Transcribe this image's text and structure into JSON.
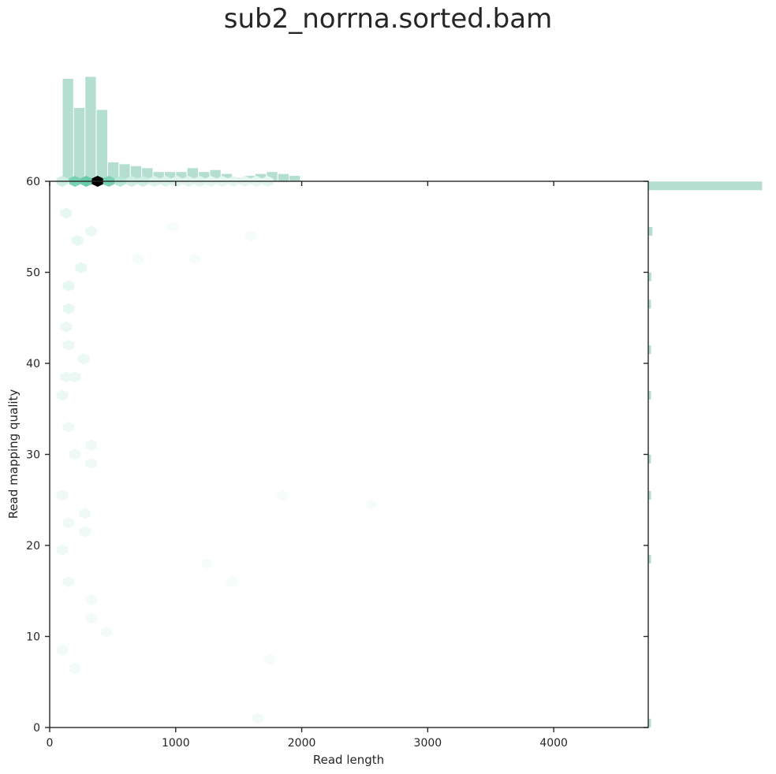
{
  "title": "sub2_norrna.sorted.bam",
  "colors": {
    "accent": "#3fbf95",
    "marginal": "#b4dfd0",
    "axis": "#262626",
    "peak": "#000000"
  },
  "chart_data": {
    "type": "hexbin-joint",
    "title": "sub2_norrna.sorted.bam",
    "xlabel": "Read length",
    "ylabel": "Read mapping quality",
    "xlim": [
      0,
      4750
    ],
    "ylim": [
      0,
      60
    ],
    "xticks": [
      0,
      1000,
      2000,
      3000,
      4000
    ],
    "yticks": [
      0,
      10,
      20,
      30,
      40,
      50,
      60
    ],
    "grid": false,
    "marginal_x": {
      "bin_start": 100,
      "bin_width": 90,
      "counts": [
        53,
        38,
        54,
        37,
        10,
        9,
        8,
        7,
        5,
        5,
        5,
        7,
        5,
        6,
        4,
        2,
        3,
        4,
        5,
        4,
        3
      ]
    },
    "marginal_y": {
      "bins": [
        {
          "y": 59.5,
          "count": 100
        },
        {
          "y": 54.5,
          "count": 4
        },
        {
          "y": 49.5,
          "count": 3
        },
        {
          "y": 46.5,
          "count": 2
        },
        {
          "y": 41.5,
          "count": 2
        },
        {
          "y": 36.5,
          "count": 2
        },
        {
          "y": 29.5,
          "count": 1
        },
        {
          "y": 25.5,
          "count": 1
        },
        {
          "y": 18.5,
          "count": 1
        },
        {
          "y": 0.5,
          "count": 2
        }
      ]
    },
    "hexbins": [
      {
        "x": 100,
        "y": 60,
        "d": 0.15
      },
      {
        "x": 200,
        "y": 60,
        "d": 0.6
      },
      {
        "x": 290,
        "y": 60,
        "d": 0.7
      },
      {
        "x": 380,
        "y": 60,
        "d": 1.0
      },
      {
        "x": 470,
        "y": 60,
        "d": 0.6
      },
      {
        "x": 560,
        "y": 60,
        "d": 0.25
      },
      {
        "x": 650,
        "y": 60,
        "d": 0.15
      },
      {
        "x": 740,
        "y": 60,
        "d": 0.15
      },
      {
        "x": 830,
        "y": 60,
        "d": 0.1
      },
      {
        "x": 920,
        "y": 60,
        "d": 0.1
      },
      {
        "x": 1010,
        "y": 60,
        "d": 0.08
      },
      {
        "x": 1100,
        "y": 60,
        "d": 0.08
      },
      {
        "x": 1190,
        "y": 60,
        "d": 0.08
      },
      {
        "x": 1280,
        "y": 60,
        "d": 0.06
      },
      {
        "x": 1370,
        "y": 60,
        "d": 0.06
      },
      {
        "x": 1460,
        "y": 60,
        "d": 0.06
      },
      {
        "x": 1550,
        "y": 60,
        "d": 0.06
      },
      {
        "x": 1640,
        "y": 60,
        "d": 0.06
      },
      {
        "x": 1730,
        "y": 60,
        "d": 0.06
      },
      {
        "x": 130,
        "y": 56.5,
        "d": 0.05
      },
      {
        "x": 220,
        "y": 53.5,
        "d": 0.05
      },
      {
        "x": 330,
        "y": 54.5,
        "d": 0.04
      },
      {
        "x": 250,
        "y": 50.5,
        "d": 0.05
      },
      {
        "x": 150,
        "y": 48.5,
        "d": 0.05
      },
      {
        "x": 150,
        "y": 46.0,
        "d": 0.05
      },
      {
        "x": 130,
        "y": 44.0,
        "d": 0.04
      },
      {
        "x": 150,
        "y": 42.0,
        "d": 0.04
      },
      {
        "x": 270,
        "y": 40.5,
        "d": 0.04
      },
      {
        "x": 130,
        "y": 38.5,
        "d": 0.04
      },
      {
        "x": 200,
        "y": 38.5,
        "d": 0.04
      },
      {
        "x": 100,
        "y": 36.5,
        "d": 0.04
      },
      {
        "x": 150,
        "y": 33.0,
        "d": 0.03
      },
      {
        "x": 330,
        "y": 31.0,
        "d": 0.03
      },
      {
        "x": 200,
        "y": 30.0,
        "d": 0.03
      },
      {
        "x": 330,
        "y": 29.0,
        "d": 0.03
      },
      {
        "x": 100,
        "y": 25.5,
        "d": 0.03
      },
      {
        "x": 280,
        "y": 23.5,
        "d": 0.03
      },
      {
        "x": 150,
        "y": 22.5,
        "d": 0.03
      },
      {
        "x": 280,
        "y": 21.5,
        "d": 0.03
      },
      {
        "x": 100,
        "y": 19.5,
        "d": 0.03
      },
      {
        "x": 150,
        "y": 16.0,
        "d": 0.03
      },
      {
        "x": 330,
        "y": 14.0,
        "d": 0.02
      },
      {
        "x": 330,
        "y": 12.0,
        "d": 0.02
      },
      {
        "x": 450,
        "y": 10.5,
        "d": 0.02
      },
      {
        "x": 100,
        "y": 8.5,
        "d": 0.02
      },
      {
        "x": 200,
        "y": 6.5,
        "d": 0.02
      },
      {
        "x": 1650,
        "y": 1.0,
        "d": 0.02
      },
      {
        "x": 1750,
        "y": 7.5,
        "d": 0.015
      },
      {
        "x": 1150,
        "y": 51.5,
        "d": 0.015
      },
      {
        "x": 970,
        "y": 55.0,
        "d": 0.015
      },
      {
        "x": 1600,
        "y": 54.0,
        "d": 0.015
      },
      {
        "x": 1850,
        "y": 25.5,
        "d": 0.015
      },
      {
        "x": 2550,
        "y": 24.5,
        "d": 0.015
      },
      {
        "x": 1250,
        "y": 18.0,
        "d": 0.015
      },
      {
        "x": 1450,
        "y": 16.0,
        "d": 0.015
      },
      {
        "x": 700,
        "y": 51.5,
        "d": 0.015
      }
    ]
  }
}
